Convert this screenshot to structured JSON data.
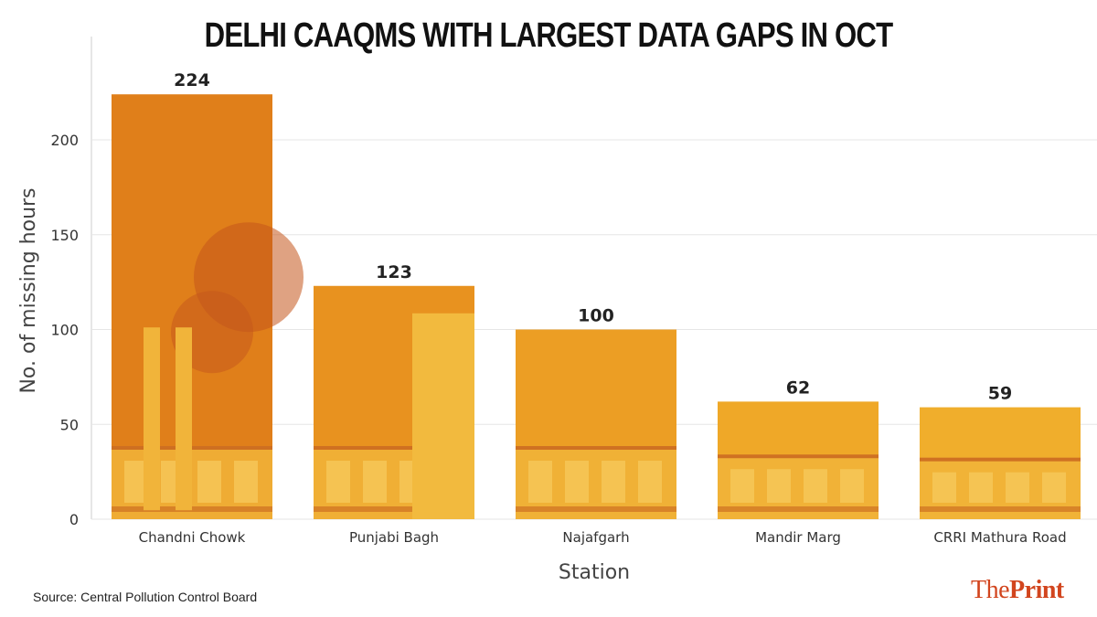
{
  "chart_data": {
    "type": "bar",
    "title": "DELHI CAAQMS WITH LARGEST DATA GAPS IN OCT",
    "xlabel": "Station",
    "ylabel": "No. of missing hours",
    "categories": [
      "Chandni Chowk",
      "Punjabi Bagh",
      "Najafgarh",
      "Mandir Marg",
      "CRRI Mathura Road"
    ],
    "values": [
      224,
      123,
      100,
      62,
      59
    ],
    "data_labels": [
      "224",
      "123",
      "100",
      "62",
      "59"
    ],
    "ylim": [
      0,
      230
    ],
    "yticks": [
      0,
      50,
      100,
      150,
      200
    ],
    "grid": true,
    "bar_colors": [
      "#E07F1A",
      "#E8921F",
      "#EC9E24",
      "#EFA828",
      "#F0AE2C"
    ]
  },
  "source": "Source: Central Pollution Control Board",
  "logo": {
    "part1": "The",
    "part2": "Print",
    "color": "#D2451E"
  }
}
